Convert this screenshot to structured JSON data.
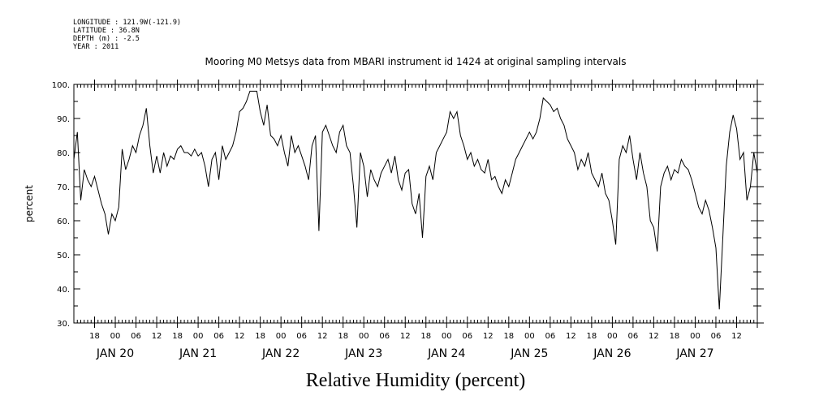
{
  "header": {
    "longitude": "LONGITUDE : 121.9W(-121.9)",
    "latitude": "LATITUDE : 36.8N",
    "depth": "DEPTH (m) : -2.5",
    "year": "YEAR : 2011"
  },
  "chart_data": {
    "type": "line",
    "title": "Mooring M0 Metsys data from MBARI instrument id 1424 at original sampling intervals",
    "xlabel": "Relative Humidity (percent)",
    "ylabel": "percent",
    "ylim": [
      30,
      100
    ],
    "yticks": [
      "30.",
      "40.",
      "50.",
      "60.",
      "70.",
      "80.",
      "90.",
      "100."
    ],
    "xlim_hours": [
      0,
      198
    ],
    "hour_ticks": [
      "18",
      "00",
      "06",
      "12",
      "18",
      "00",
      "06",
      "12",
      "18",
      "00",
      "06",
      "12",
      "18",
      "00",
      "06",
      "12",
      "18",
      "00",
      "06",
      "12",
      "18",
      "00",
      "06",
      "12",
      "18",
      "00",
      "06",
      "12",
      "18",
      "00",
      "06",
      "12"
    ],
    "day_labels": [
      "JAN 20",
      "JAN 21",
      "JAN 22",
      "JAN 23",
      "JAN 24",
      "JAN 25",
      "JAN 26",
      "JAN 27"
    ],
    "series": [
      {
        "x": [
          0,
          1,
          2,
          3,
          4,
          5,
          6,
          7,
          8,
          9,
          10,
          11,
          12,
          13,
          14,
          15,
          16,
          17,
          18,
          19,
          20,
          21,
          22,
          23,
          24,
          25,
          26,
          27,
          28,
          29,
          30,
          31,
          32,
          33,
          34,
          35,
          36,
          37,
          38,
          39,
          40,
          41,
          42,
          43,
          44,
          45,
          46,
          47,
          48,
          49,
          50,
          51,
          52,
          53,
          54,
          55,
          56,
          57,
          58,
          59,
          60,
          61,
          62,
          63,
          64,
          65,
          66,
          67,
          68,
          69,
          70,
          71,
          72,
          73,
          74,
          75,
          76,
          77,
          78,
          79,
          80,
          81,
          82,
          83,
          84,
          85,
          86,
          87,
          88,
          89,
          90,
          91,
          92,
          93,
          94,
          95,
          96,
          97,
          98,
          99,
          100,
          101,
          102,
          103,
          104,
          105,
          106,
          107,
          108,
          109,
          110,
          111,
          112,
          113,
          114,
          115,
          116,
          117,
          118,
          119,
          120,
          121,
          122,
          123,
          124,
          125,
          126,
          127,
          128,
          129,
          130,
          131,
          132,
          133,
          134,
          135,
          136,
          137,
          138,
          139,
          140,
          141,
          142,
          143,
          144,
          145,
          146,
          147,
          148,
          149,
          150,
          151,
          152,
          153,
          154,
          155,
          156,
          157,
          158,
          159,
          160,
          161,
          162,
          163,
          164,
          165,
          166,
          167,
          168,
          169,
          170,
          171,
          172,
          173,
          174,
          175,
          176,
          177,
          178,
          179,
          180,
          181,
          182,
          183,
          184,
          185,
          186,
          187,
          188,
          189,
          190,
          191,
          192,
          193,
          194,
          195,
          196,
          197,
          198
        ],
        "y": [
          78,
          86,
          66,
          75,
          72,
          70,
          73,
          69,
          65,
          62,
          56,
          62,
          60,
          64,
          81,
          75,
          78,
          82,
          80,
          85,
          88,
          93,
          82,
          74,
          79,
          74,
          80,
          76,
          79,
          78,
          81,
          82,
          80,
          80,
          79,
          81,
          79,
          80,
          76,
          70,
          78,
          80,
          72,
          82,
          78,
          80,
          82,
          86,
          92,
          93,
          95,
          98,
          98,
          98,
          92,
          88,
          94,
          85,
          84,
          82,
          85,
          80,
          76,
          85,
          80,
          82,
          79,
          76,
          72,
          82,
          85,
          57,
          86,
          88,
          85,
          82,
          80,
          86,
          88,
          82,
          80,
          70,
          58,
          80,
          76,
          67,
          75,
          72,
          70,
          74,
          76,
          78,
          74,
          79,
          72,
          69,
          74,
          75,
          65,
          62,
          68,
          55,
          73,
          76,
          72,
          80,
          82,
          84,
          86,
          92,
          90,
          92,
          85,
          82,
          78,
          80,
          76,
          78,
          75,
          74,
          78,
          72,
          73,
          70,
          68,
          72,
          70,
          74,
          78,
          80,
          82,
          84,
          86,
          84,
          86,
          90,
          96,
          95,
          94,
          92,
          93,
          90,
          88,
          84,
          82,
          80,
          75,
          78,
          76,
          80,
          74,
          72,
          70,
          74,
          68,
          66,
          60,
          53,
          78,
          82,
          80,
          85,
          78,
          72,
          80,
          74,
          70,
          60,
          58,
          51,
          70,
          74,
          76,
          72,
          75,
          74,
          78,
          76,
          75,
          72,
          68,
          64,
          62,
          66,
          63,
          58,
          52,
          34,
          55,
          76,
          86,
          91,
          87,
          78,
          80,
          66,
          70,
          80,
          74
        ]
      }
    ]
  }
}
